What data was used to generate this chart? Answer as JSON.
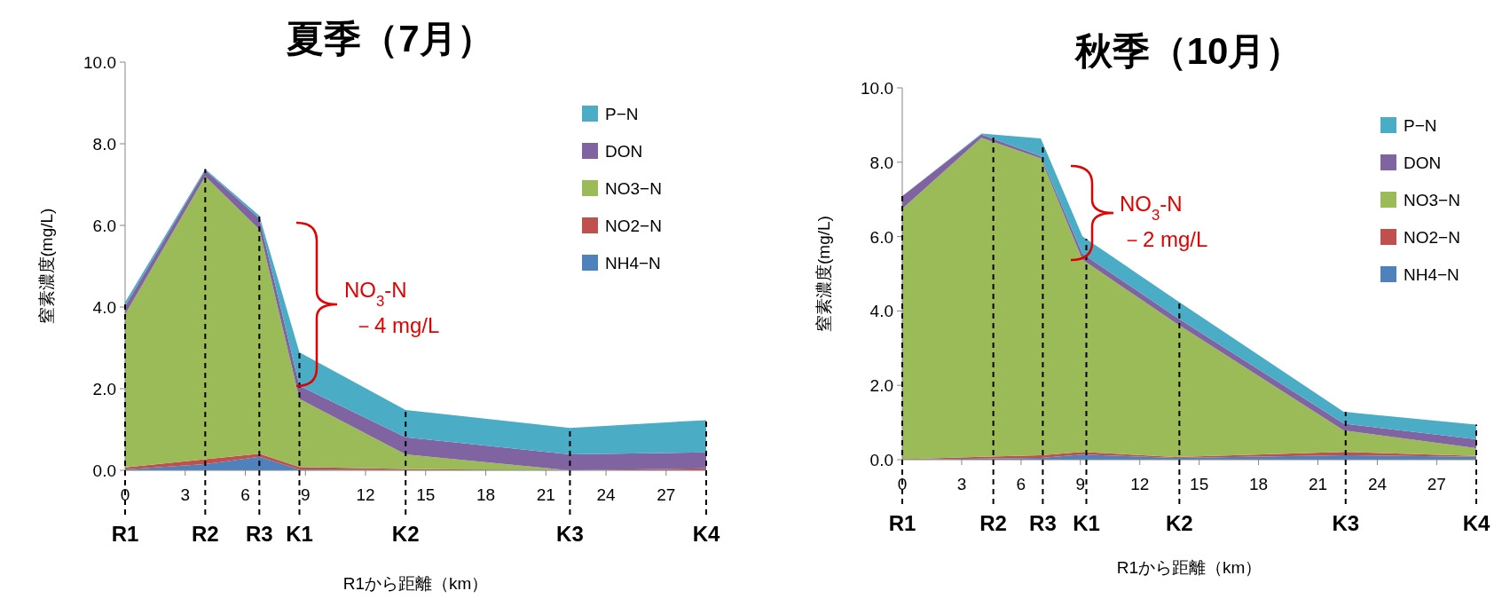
{
  "chart_data": [
    {
      "type": "area",
      "stacked": true,
      "title": "夏季（7月）",
      "xlabel": "R1から距離（km）",
      "ylabel": "窒素濃度(mg/L)",
      "x": [
        0,
        4.0,
        6.7,
        8.7,
        14.0,
        22.2,
        29.0
      ],
      "series": [
        {
          "name": "NH4−N",
          "color": "#4f81bd",
          "values": [
            0.02,
            0.15,
            0.33,
            0.02,
            0,
            0,
            0
          ]
        },
        {
          "name": "NO2−N",
          "color": "#c0504d",
          "values": [
            0.05,
            0.12,
            0.08,
            0.06,
            0.03,
            0,
            0.05
          ]
        },
        {
          "name": "NO3−N",
          "color": "#9bbb59",
          "values": [
            3.75,
            6.93,
            5.49,
            1.67,
            0.36,
            0,
            0
          ]
        },
        {
          "name": "DON",
          "color": "#8064a2",
          "values": [
            0.2,
            0.15,
            0.27,
            0.32,
            0.42,
            0.39,
            0.39
          ]
        },
        {
          "name": "P−N",
          "color": "#4bacc6",
          "values": [
            0.1,
            0.03,
            0.07,
            0.82,
            0.67,
            0.65,
            0.79
          ]
        }
      ],
      "xlim": [
        0,
        29
      ],
      "ylim": [
        0,
        10
      ],
      "xticks": [
        0,
        3,
        6,
        9,
        12,
        15,
        18,
        21,
        24,
        27
      ],
      "yticks": [
        {
          "value": 0,
          "label": "0.0"
        },
        {
          "value": 2,
          "label": "2.0"
        },
        {
          "value": 4,
          "label": "4.0"
        },
        {
          "value": 6,
          "label": "6.0"
        },
        {
          "value": 8,
          "label": "8.0"
        },
        {
          "value": 10,
          "label": "10.0"
        }
      ],
      "ref_lines": [
        {
          "axis": "x",
          "value": 0,
          "label": "R1",
          "line_style": "dashed",
          "color": "#000000"
        },
        {
          "axis": "x",
          "value": 4.0,
          "label": "R2",
          "line_style": "dashed",
          "color": "#000000"
        },
        {
          "axis": "x",
          "value": 6.7,
          "label": "R3",
          "line_style": "dashed",
          "color": "#000000"
        },
        {
          "axis": "x",
          "value": 8.7,
          "label": "K1",
          "line_style": "dashed",
          "color": "#000000"
        },
        {
          "axis": "x",
          "value": 14.0,
          "label": "K2",
          "line_style": "dashed",
          "color": "#000000"
        },
        {
          "axis": "x",
          "value": 22.2,
          "label": "K3",
          "line_style": "dashed",
          "color": "#000000"
        },
        {
          "axis": "x",
          "value": 29.0,
          "label": "K4",
          "line_style": "dashed",
          "color": "#000000"
        }
      ],
      "annotations": [
        "NO$_{3}$-N",
        "－4 mg/L"
      ],
      "legend": "top right",
      "grid": false
    },
    {
      "type": "area",
      "stacked": true,
      "title": "秋季（10月）",
      "xlabel": "R1から距離（km）",
      "ylabel": "窒素濃度(mg/L)",
      "x": [
        0,
        4.0,
        7.0,
        9.1,
        13.8,
        22.3,
        29.0
      ],
      "series": [
        {
          "name": "NH4−N",
          "color": "#4f81bd",
          "values": [
            0,
            0.03,
            0.05,
            0.14,
            0.05,
            0.12,
            0.08
          ]
        },
        {
          "name": "NO2−N",
          "color": "#c0504d",
          "values": [
            0.01,
            0.05,
            0.07,
            0.07,
            0.02,
            0.09,
            0.02
          ]
        },
        {
          "name": "NO3−N",
          "color": "#9bbb59",
          "values": [
            6.74,
            8.58,
            7.98,
            5.17,
            3.61,
            0.58,
            0.21
          ]
        },
        {
          "name": "DON",
          "color": "#8064a2",
          "values": [
            0.34,
            0.09,
            0.06,
            0.16,
            0.17,
            0.18,
            0.24
          ]
        },
        {
          "name": "P−N",
          "color": "#4bacc6",
          "values": [
            0,
            0.02,
            0.48,
            0.47,
            0.46,
            0.32,
            0.39
          ]
        }
      ],
      "xlim": [
        0,
        29
      ],
      "ylim": [
        0,
        10
      ],
      "xticks": [
        0,
        3,
        6,
        9,
        12,
        15,
        18,
        21,
        24,
        27
      ],
      "yticks": [
        {
          "value": 0,
          "label": "0.0"
        },
        {
          "value": 2,
          "label": "2.0"
        },
        {
          "value": 4,
          "label": "4.0"
        },
        {
          "value": 6,
          "label": "6.0"
        },
        {
          "value": 8,
          "label": "8.0"
        },
        {
          "value": 10,
          "label": "10.0"
        }
      ],
      "ref_lines": [
        {
          "axis": "x",
          "value": 0,
          "label": "R1",
          "line_style": "dashed",
          "color": "#000000"
        },
        {
          "axis": "x",
          "value": 4.6,
          "label": "R2",
          "line_style": "dashed",
          "color": "#000000"
        },
        {
          "axis": "x",
          "value": 7.1,
          "label": "R3",
          "line_style": "dashed",
          "color": "#000000"
        },
        {
          "axis": "x",
          "value": 9.3,
          "label": "K1",
          "line_style": "dashed",
          "color": "#000000"
        },
        {
          "axis": "x",
          "value": 14.0,
          "label": "K2",
          "line_style": "dashed",
          "color": "#000000"
        },
        {
          "axis": "x",
          "value": 22.4,
          "label": "K3",
          "line_style": "dashed",
          "color": "#000000"
        },
        {
          "axis": "x",
          "value": 29.0,
          "label": "K4",
          "line_style": "dashed",
          "color": "#000000"
        }
      ],
      "annotations": [
        "NO$_{3}$-N",
        "－2 mg/L"
      ],
      "legend": "top right",
      "grid": false
    }
  ]
}
